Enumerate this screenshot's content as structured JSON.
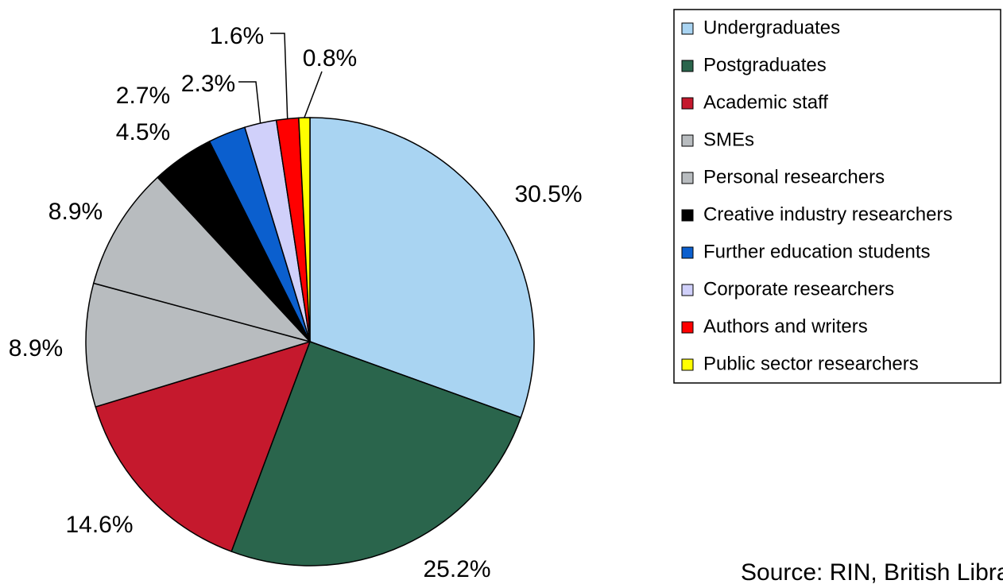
{
  "chart_data": {
    "type": "pie",
    "categories": [
      "Undergraduates",
      "Postgraduates",
      "Academic staff",
      "SMEs",
      "Personal researchers",
      "Creative industry researchers",
      "Further education students",
      "Corporate researchers",
      "Authors and writers",
      "Public sector researchers"
    ],
    "values": [
      30.5,
      25.2,
      14.6,
      8.9,
      8.9,
      4.5,
      2.7,
      2.3,
      1.6,
      0.8
    ],
    "value_labels": [
      "30.5%",
      "25.2%",
      "14.6%",
      "8.9%",
      "8.9%",
      "4.5%",
      "2.7%",
      "2.3%",
      "1.6%",
      "0.8%"
    ],
    "colors": [
      "#a9d4f2",
      "#2a654c",
      "#c5192d",
      "#b8bcbf",
      "#b8bcbf",
      "#000000",
      "#0b5fce",
      "#d0d0fa",
      "#ff0000",
      "#ffff00"
    ],
    "legend": "right",
    "source": "Source: RIN, British Library"
  }
}
